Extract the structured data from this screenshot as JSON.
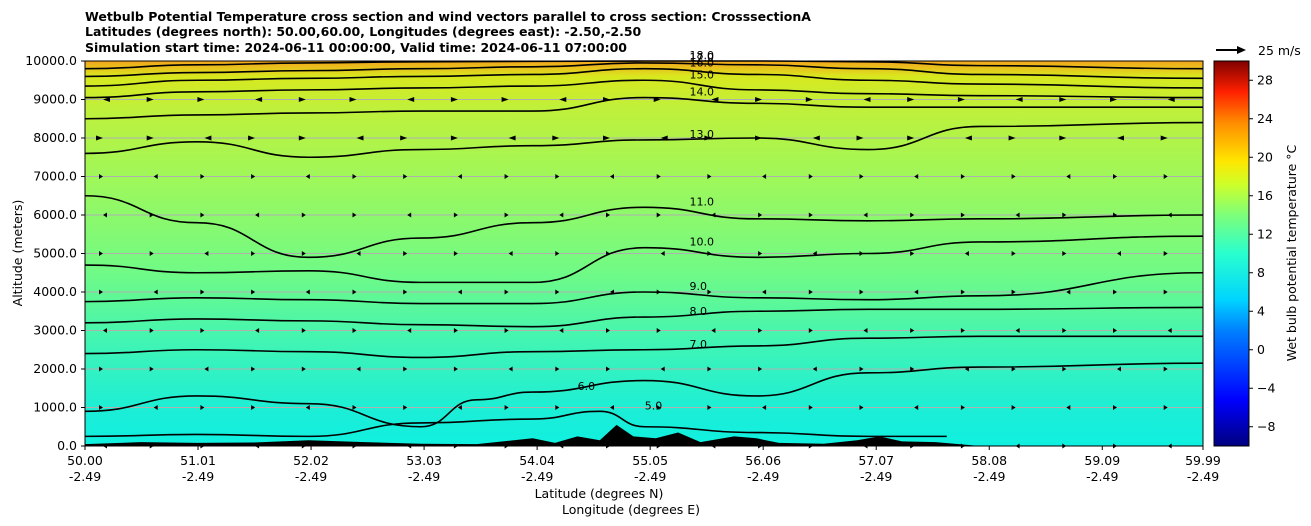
{
  "title_lines": [
    "Wetbulb Potential Temperature cross section and wind vectors parallel to cross section: CrosssectionA",
    "Latitudes (degrees north): 50.00,60.00, Longitudes (degrees east): -2.50,-2.50",
    "Simulation start time: 2024-06-11 00:00:00, Valid time: 2024-06-11 07:00:00"
  ],
  "chart_data": {
    "type": "heatmap",
    "title": "Wetbulb Potential Temperature cross section and wind vectors parallel to cross section: CrosssectionA",
    "ylabel": "Altitude (meters)",
    "xlabel_lines": [
      "Latitude (degrees N)",
      "Longitude (degrees E)"
    ],
    "xlim": [
      50.0,
      59.99
    ],
    "ylim": [
      0,
      10000
    ],
    "yticks": [
      0,
      1000,
      2000,
      3000,
      4000,
      5000,
      6000,
      7000,
      8000,
      9000,
      10000
    ],
    "ytick_labels": [
      "0.0",
      "1000.0",
      "2000.0",
      "3000.0",
      "4000.0",
      "5000.0",
      "6000.0",
      "7000.0",
      "8000.0",
      "9000.0",
      "10000.0"
    ],
    "xticks": [
      {
        "lat": "50.00",
        "lon": "-2.49"
      },
      {
        "lat": "51.01",
        "lon": "-2.49"
      },
      {
        "lat": "52.02",
        "lon": "-2.49"
      },
      {
        "lat": "53.03",
        "lon": "-2.49"
      },
      {
        "lat": "54.04",
        "lon": "-2.49"
      },
      {
        "lat": "55.05",
        "lon": "-2.49"
      },
      {
        "lat": "56.06",
        "lon": "-2.49"
      },
      {
        "lat": "57.07",
        "lon": "-2.49"
      },
      {
        "lat": "58.08",
        "lon": "-2.49"
      },
      {
        "lat": "59.09",
        "lon": "-2.49"
      },
      {
        "lat": "59.99",
        "lon": "-2.49"
      }
    ],
    "grid": "horizontal",
    "colorbar": {
      "label": "Wet bulb potential temperature °C",
      "range": [
        -10,
        30
      ],
      "ticks": [
        -8,
        -4,
        0,
        4,
        8,
        12,
        16,
        20,
        24,
        28
      ],
      "tick_labels": [
        "−8",
        "−4",
        "0",
        "4",
        "8",
        "12",
        "16",
        "20",
        "24",
        "28"
      ]
    },
    "quiver_key": {
      "label": "25 m/s",
      "speed": 25
    },
    "contours": [
      {
        "level": 5,
        "label": "5.0",
        "heights": [
          [
            50.0,
            250
          ],
          [
            51.0,
            300
          ],
          [
            52.0,
            250
          ],
          [
            53.0,
            600
          ],
          [
            54.0,
            700
          ],
          [
            54.6,
            900
          ],
          [
            55.0,
            500
          ],
          [
            56.0,
            350
          ],
          [
            57.0,
            250
          ],
          [
            57.7,
            250
          ]
        ]
      },
      {
        "level": 6,
        "label": "6.0",
        "heights": [
          [
            50.0,
            900
          ],
          [
            51.0,
            1300
          ],
          [
            52.0,
            1100
          ],
          [
            53.0,
            500
          ],
          [
            53.5,
            1200
          ],
          [
            54.0,
            1400
          ],
          [
            55.0,
            1700
          ],
          [
            56.0,
            1300
          ],
          [
            57.0,
            1900
          ],
          [
            58.0,
            2050
          ],
          [
            59.99,
            2150
          ]
        ]
      },
      {
        "level": 7,
        "label": "7.0",
        "heights": [
          [
            50.0,
            2400
          ],
          [
            51.0,
            2500
          ],
          [
            52.0,
            2450
          ],
          [
            53.0,
            2300
          ],
          [
            54.0,
            2450
          ],
          [
            55.0,
            2500
          ],
          [
            56.0,
            2600
          ],
          [
            57.0,
            2800
          ],
          [
            58.0,
            2850
          ],
          [
            59.99,
            2850
          ]
        ]
      },
      {
        "level": 8,
        "label": "8.0",
        "heights": [
          [
            50.0,
            3200
          ],
          [
            51.0,
            3300
          ],
          [
            52.0,
            3250
          ],
          [
            53.0,
            3150
          ],
          [
            54.0,
            3100
          ],
          [
            55.0,
            3350
          ],
          [
            56.0,
            3500
          ],
          [
            57.0,
            3550
          ],
          [
            58.0,
            3550
          ],
          [
            59.99,
            3600
          ]
        ]
      },
      {
        "level": 9,
        "label": "9.0",
        "heights": [
          [
            50.0,
            3750
          ],
          [
            51.0,
            3850
          ],
          [
            52.0,
            3800
          ],
          [
            53.0,
            3700
          ],
          [
            54.0,
            3700
          ],
          [
            55.0,
            4000
          ],
          [
            56.0,
            3850
          ],
          [
            57.0,
            3800
          ],
          [
            58.0,
            3900
          ],
          [
            59.99,
            4500
          ]
        ]
      },
      {
        "level": 10,
        "label": "10.0",
        "heights": [
          [
            50.0,
            4700
          ],
          [
            51.0,
            4500
          ],
          [
            52.0,
            4550
          ],
          [
            53.0,
            4250
          ],
          [
            54.0,
            4250
          ],
          [
            55.0,
            5150
          ],
          [
            56.0,
            4900
          ],
          [
            57.0,
            5000
          ],
          [
            58.0,
            5300
          ],
          [
            59.99,
            5450
          ]
        ]
      },
      {
        "level": 11,
        "label": "11.0",
        "heights": [
          [
            50.0,
            6500
          ],
          [
            51.0,
            5800
          ],
          [
            52.0,
            4900
          ],
          [
            53.0,
            5400
          ],
          [
            54.0,
            5800
          ],
          [
            55.0,
            6200
          ],
          [
            56.0,
            5900
          ],
          [
            57.0,
            5850
          ],
          [
            58.0,
            5900
          ],
          [
            59.99,
            6000
          ]
        ]
      },
      {
        "level": 13,
        "label": "13.0",
        "heights": [
          [
            50.0,
            7600
          ],
          [
            51.0,
            7900
          ],
          [
            52.0,
            7500
          ],
          [
            53.0,
            7700
          ],
          [
            54.0,
            7800
          ],
          [
            55.0,
            7950
          ],
          [
            56.0,
            8000
          ],
          [
            57.0,
            7700
          ],
          [
            58.0,
            8300
          ],
          [
            59.99,
            8400
          ]
        ]
      },
      {
        "level": 14,
        "label": "14.0",
        "heights": [
          [
            50.0,
            8500
          ],
          [
            51.0,
            8600
          ],
          [
            52.0,
            8650
          ],
          [
            53.0,
            8700
          ],
          [
            54.0,
            8700
          ],
          [
            55.0,
            9050
          ],
          [
            56.0,
            8900
          ],
          [
            57.0,
            8800
          ],
          [
            58.0,
            8800
          ],
          [
            59.99,
            8800
          ]
        ]
      },
      {
        "level": 15,
        "label": "15.0",
        "heights": [
          [
            50.0,
            9050
          ],
          [
            51.0,
            9200
          ],
          [
            52.0,
            9250
          ],
          [
            53.0,
            9300
          ],
          [
            54.0,
            9350
          ],
          [
            55.0,
            9500
          ],
          [
            56.0,
            9250
          ],
          [
            57.0,
            9150
          ],
          [
            58.0,
            9100
          ],
          [
            59.99,
            9050
          ]
        ]
      },
      {
        "level": 16,
        "label": "16.0",
        "heights": [
          [
            50.0,
            9350
          ],
          [
            51.0,
            9500
          ],
          [
            52.0,
            9550
          ],
          [
            53.0,
            9600
          ],
          [
            54.0,
            9650
          ],
          [
            55.0,
            9800
          ],
          [
            56.0,
            9650
          ],
          [
            57.0,
            9500
          ],
          [
            58.0,
            9400
          ],
          [
            59.99,
            9300
          ]
        ]
      },
      {
        "level": 17,
        "label": "17.0",
        "heights": [
          [
            50.0,
            9600
          ],
          [
            51.0,
            9700
          ],
          [
            52.0,
            9750
          ],
          [
            53.0,
            9800
          ],
          [
            54.0,
            9850
          ],
          [
            55.0,
            9950
          ],
          [
            56.0,
            9900
          ],
          [
            57.0,
            9800
          ],
          [
            58.0,
            9650
          ],
          [
            59.99,
            9550
          ]
        ]
      },
      {
        "level": 18,
        "label": "18.0",
        "heights": [
          [
            50.0,
            9800
          ],
          [
            51.0,
            9900
          ],
          [
            52.0,
            9950
          ],
          [
            53.0,
            9980
          ],
          [
            54.0,
            9990
          ],
          [
            55.0,
            10000
          ],
          [
            56.0,
            10000
          ],
          [
            57.0,
            9980
          ],
          [
            58.0,
            9880
          ],
          [
            59.99,
            9800
          ]
        ]
      }
    ],
    "terrain_heights_m": [
      [
        50.0,
        50
      ],
      [
        50.5,
        100
      ],
      [
        51.0,
        80
      ],
      [
        51.5,
        90
      ],
      [
        52.0,
        150
      ],
      [
        52.5,
        100
      ],
      [
        53.0,
        60
      ],
      [
        53.5,
        50
      ],
      [
        54.0,
        200
      ],
      [
        54.2,
        80
      ],
      [
        54.4,
        250
      ],
      [
        54.6,
        150
      ],
      [
        54.75,
        550
      ],
      [
        54.9,
        250
      ],
      [
        55.1,
        200
      ],
      [
        55.3,
        350
      ],
      [
        55.5,
        100
      ],
      [
        55.8,
        250
      ],
      [
        56.0,
        200
      ],
      [
        56.2,
        80
      ],
      [
        56.6,
        60
      ],
      [
        56.9,
        150
      ],
      [
        57.1,
        250
      ],
      [
        57.3,
        120
      ],
      [
        57.6,
        100
      ],
      [
        58.0,
        0
      ],
      [
        59.99,
        0
      ]
    ]
  }
}
